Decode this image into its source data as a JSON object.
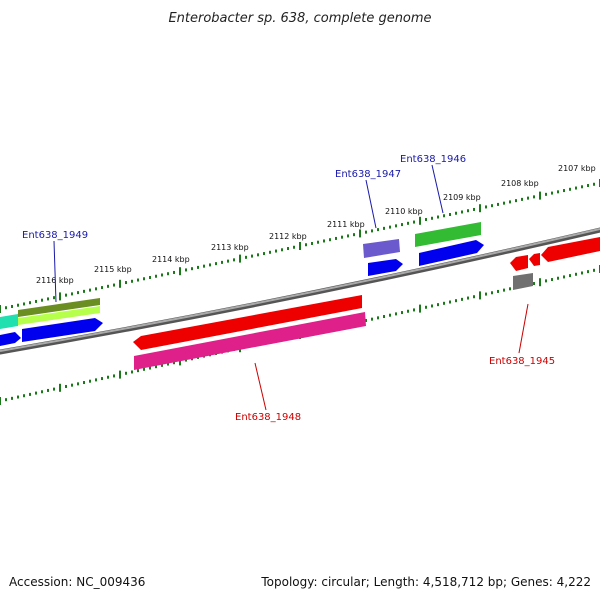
{
  "title": "Enterobacter sp. 638, complete genome",
  "footer": {
    "accession": "Accession: NC_009436",
    "topology": "Topology: circular; Length: 4,518,712 bp; Genes: 4,222"
  },
  "colors": {
    "backbone": "#808080",
    "ticks": "#1a7a1a",
    "forward_label": "#1a1aaa",
    "reverse_label": "#cc0000",
    "red": "#ee0000",
    "magenta": "#e0208a",
    "blue": "#0000ee",
    "green": "#33bb33",
    "olive": "#6b8e23",
    "lime": "#b6ff4a",
    "cyan": "#20e0b0",
    "purple": "#6a5acd",
    "gray": "#707070"
  },
  "ruler": {
    "tick_labels": [
      "2107 kbp",
      "2108 kbp",
      "2109 kbp",
      "2110 kbp",
      "2111 kbp",
      "2112 kbp",
      "2113 kbp",
      "2114 kbp",
      "2115 kbp",
      "2116 kbp"
    ]
  },
  "gene_labels": [
    {
      "name": "Ent638_1949",
      "strand": "forward"
    },
    {
      "name": "Ent638_1947",
      "strand": "forward"
    },
    {
      "name": "Ent638_1946",
      "strand": "forward"
    },
    {
      "name": "Ent638_1948",
      "strand": "reverse"
    },
    {
      "name": "Ent638_1945",
      "strand": "reverse"
    }
  ]
}
